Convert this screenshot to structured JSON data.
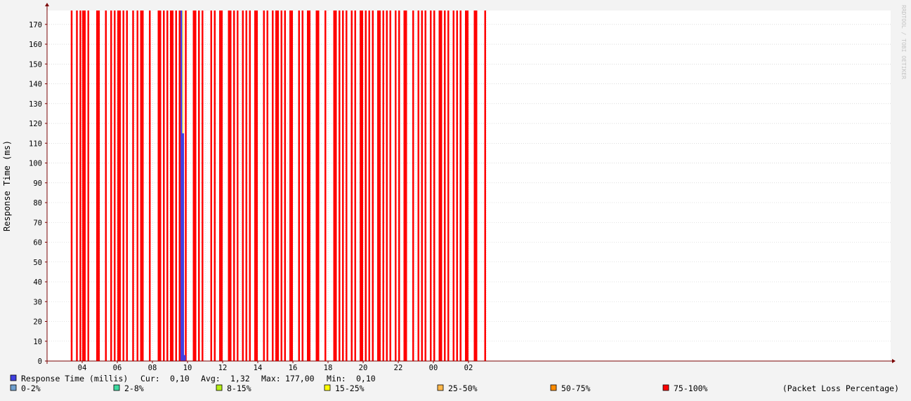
{
  "chart_data": {
    "type": "bar",
    "ylabel": "Response Time (ms)",
    "watermark": "RRDTOOL / TOBI OETIKER",
    "ylim": [
      0,
      177
    ],
    "y_ticks": [
      0,
      10,
      20,
      30,
      40,
      50,
      60,
      70,
      80,
      90,
      100,
      110,
      120,
      130,
      140,
      150,
      160,
      170
    ],
    "x_ticks": [
      "04",
      "06",
      "08",
      "10",
      "12",
      "14",
      "16",
      "18",
      "20",
      "22",
      "00",
      "02"
    ],
    "x_range_hours": [
      3.1,
      27.0
    ],
    "grid": true,
    "packet_loss_75_100_hours": [
      [
        3.35,
        3.45
      ],
      [
        3.65,
        3.75
      ],
      [
        3.85,
        3.95
      ],
      [
        4.0,
        4.2
      ],
      [
        4.3,
        4.4
      ],
      [
        4.8,
        5.0
      ],
      [
        5.3,
        5.4
      ],
      [
        5.6,
        5.7
      ],
      [
        5.8,
        5.9
      ],
      [
        6.0,
        6.2
      ],
      [
        6.3,
        6.4
      ],
      [
        6.5,
        6.6
      ],
      [
        6.85,
        6.95
      ],
      [
        7.1,
        7.2
      ],
      [
        7.3,
        7.5
      ],
      [
        7.8,
        7.9
      ],
      [
        8.3,
        8.5
      ],
      [
        8.6,
        8.7
      ],
      [
        8.8,
        8.9
      ],
      [
        9.0,
        9.2
      ],
      [
        9.3,
        9.4
      ],
      [
        9.5,
        9.6
      ],
      [
        9.85,
        9.95
      ],
      [
        10.3,
        10.5
      ],
      [
        10.6,
        10.7
      ],
      [
        10.8,
        10.9
      ],
      [
        11.3,
        11.4
      ],
      [
        11.5,
        11.6
      ],
      [
        11.8,
        12.0
      ],
      [
        12.3,
        12.5
      ],
      [
        12.6,
        12.7
      ],
      [
        12.8,
        12.9
      ],
      [
        13.1,
        13.2
      ],
      [
        13.3,
        13.4
      ],
      [
        13.5,
        13.6
      ],
      [
        13.8,
        14.0
      ],
      [
        14.3,
        14.4
      ],
      [
        14.5,
        14.6
      ],
      [
        14.8,
        14.9
      ],
      [
        15.0,
        15.2
      ],
      [
        15.3,
        15.4
      ],
      [
        15.5,
        15.6
      ],
      [
        15.8,
        16.0
      ],
      [
        16.3,
        16.4
      ],
      [
        16.5,
        16.6
      ],
      [
        16.8,
        17.0
      ],
      [
        17.3,
        17.5
      ],
      [
        17.8,
        17.9
      ],
      [
        18.3,
        18.5
      ],
      [
        18.6,
        18.7
      ],
      [
        18.8,
        18.9
      ],
      [
        19.0,
        19.1
      ],
      [
        19.3,
        19.4
      ],
      [
        19.5,
        19.6
      ],
      [
        19.8,
        20.0
      ],
      [
        20.1,
        20.2
      ],
      [
        20.3,
        20.4
      ],
      [
        20.5,
        20.6
      ],
      [
        20.8,
        21.0
      ],
      [
        21.1,
        21.2
      ],
      [
        21.3,
        21.4
      ],
      [
        21.5,
        21.6
      ],
      [
        21.8,
        21.9
      ],
      [
        22.0,
        22.1
      ],
      [
        22.3,
        22.5
      ],
      [
        22.8,
        22.9
      ],
      [
        23.1,
        23.2
      ],
      [
        23.3,
        23.4
      ],
      [
        23.5,
        23.6
      ],
      [
        23.8,
        23.9
      ],
      [
        24.0,
        24.1
      ],
      [
        24.3,
        24.5
      ],
      [
        24.6,
        24.7
      ],
      [
        24.8,
        24.9
      ],
      [
        25.1,
        25.2
      ],
      [
        25.3,
        25.4
      ],
      [
        25.5,
        25.6
      ],
      [
        25.8,
        26.0
      ],
      [
        26.3,
        26.5
      ],
      [
        26.9,
        27.0
      ]
    ],
    "packet_loss_15_25_hours": [
      [
        9.7,
        9.8
      ]
    ],
    "response_time_bars": [
      {
        "x": [
          9.6,
          9.7
        ],
        "value": 177
      },
      {
        "x": [
          9.7,
          9.8
        ],
        "value": 115
      },
      {
        "x": [
          9.8,
          9.9
        ],
        "value": 3
      }
    ],
    "colors": {
      "background": "#f3f3f3",
      "plot_bg": "#ffffff",
      "grid": "#c8c8c8",
      "axis": "#7a0000",
      "response_time": "#4040e0",
      "loss_0_2": "#6e9fcf",
      "loss_2_8": "#3ed9a0",
      "loss_8_15": "#b5ee16",
      "loss_15_25": "#ffff00",
      "loss_25_50": "#ffb84a",
      "loss_50_75": "#ff8c00",
      "loss_75_100": "#ff0000"
    },
    "legend": {
      "response_time": {
        "label": "Response Time (millis)",
        "cur_label": "Cur:",
        "cur": "0,10",
        "avg_label": "Avg:",
        "avg": "1,32",
        "max_label": "Max:",
        "max": "177,00",
        "min_label": "Min:",
        "min": "0,10"
      },
      "loss_items": [
        {
          "label": "0-2%",
          "color": "#6e9fcf"
        },
        {
          "label": "2-8%",
          "color": "#3ed9a0"
        },
        {
          "label": "8-15%",
          "color": "#b5ee16"
        },
        {
          "label": "15-25%",
          "color": "#ffff00"
        },
        {
          "label": "25-50%",
          "color": "#ffb84a"
        },
        {
          "label": "50-75%",
          "color": "#ff8c00"
        },
        {
          "label": "75-100%",
          "color": "#ff0000"
        }
      ],
      "loss_note": "(Packet Loss Percentage)"
    }
  }
}
